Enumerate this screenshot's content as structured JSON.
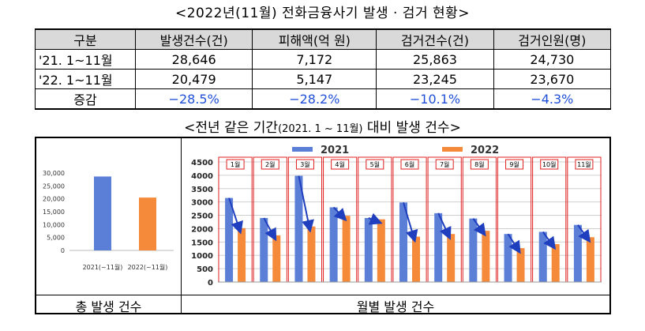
{
  "title": "<2022년(11월) 전화금융사기 발생 · 검거 현황>",
  "table": {
    "headers": [
      "구분",
      "발생건수(건)",
      "피해액(억 원)",
      "검거건수(건)",
      "검거인원(명)"
    ],
    "rows": [
      [
        "'21. 1~11월",
        "28,646",
        "7,172",
        "25,863",
        "24,730"
      ],
      [
        "'22. 1~11월",
        "20,479",
        "5,147",
        "23,245",
        "23,670"
      ]
    ],
    "change": [
      "증감",
      "−28.5%",
      "−28.2%",
      "−10.1%",
      "−4.3%"
    ]
  },
  "subtitle": {
    "before": "<전년 같은 기간",
    "small": "(2021. 1 ~ 11월)",
    "after": " 대비 발생 건수>"
  },
  "captions": {
    "left": "총 발생 건수",
    "right": "월별 발생 건수"
  },
  "colors": {
    "s2021": "#5b7fd6",
    "s2022": "#f58a3a",
    "arrow": "#1f3fbf",
    "month_box": "#e02020"
  },
  "chart_data": [
    {
      "type": "bar",
      "categories": [
        "2021(~11월)",
        "2022(~11월)"
      ],
      "values": [
        28646,
        20479
      ],
      "ylim": [
        0,
        30000
      ],
      "yticks": [
        "0",
        "5,000",
        "10,000",
        "15,000",
        "20,000",
        "25,000",
        "30,000"
      ],
      "grid": false
    },
    {
      "type": "bar",
      "categories": [
        "1월",
        "2월",
        "3월",
        "4월",
        "5월",
        "6월",
        "7월",
        "8월",
        "9월",
        "10월",
        "11월"
      ],
      "series": [
        {
          "name": "2021",
          "values": [
            3150,
            2400,
            3980,
            2800,
            2400,
            2980,
            2580,
            2380,
            1800,
            1880,
            2140
          ]
        },
        {
          "name": "2022",
          "values": [
            2020,
            1750,
            2080,
            2480,
            2350,
            1700,
            1800,
            1920,
            1270,
            1420,
            1680
          ]
        }
      ],
      "ylim": [
        0,
        4500
      ],
      "yticks": [
        "0",
        "500",
        "1000",
        "1500",
        "2000",
        "2500",
        "3000",
        "3500",
        "4000",
        "4500"
      ],
      "legend": "top",
      "grid": true
    }
  ]
}
